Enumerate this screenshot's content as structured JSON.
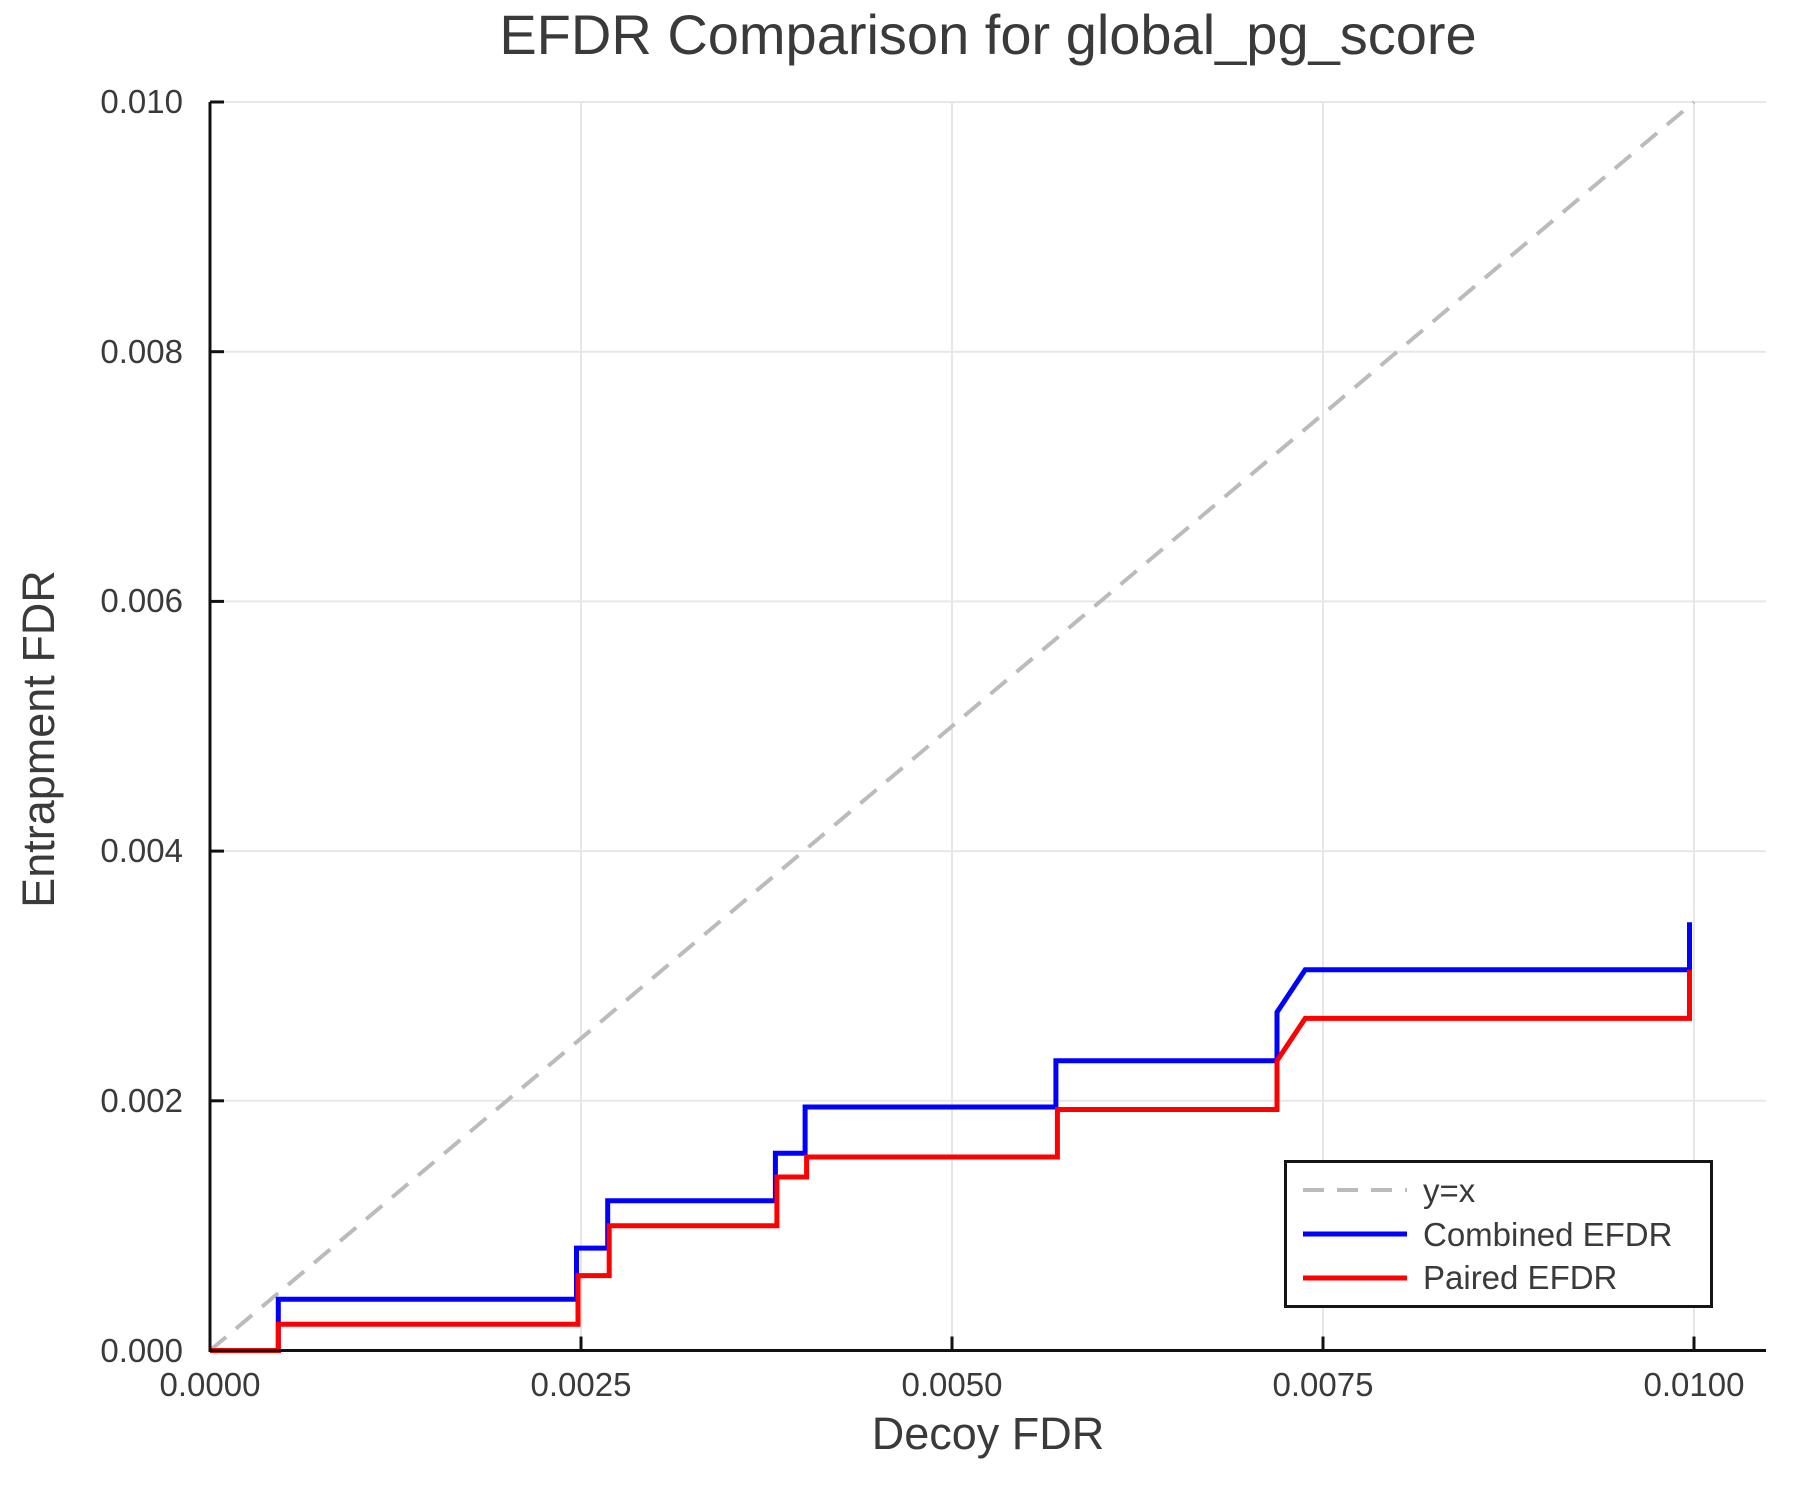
{
  "chart_data": {
    "type": "line",
    "title": "EFDR Comparison for global_pg_score",
    "xlabel": "Decoy FDR",
    "ylabel": "Entrapment FDR",
    "xlim": [
      0,
      0.01049
    ],
    "ylim": [
      0,
      0.01
    ],
    "grid": true,
    "legend": {
      "position": "lower right",
      "entries": [
        "y=x",
        "Combined EFDR",
        "Paired EFDR"
      ]
    },
    "x_ticks": {
      "values": [
        0,
        0.0025,
        0.005,
        0.0075,
        0.01
      ],
      "labels": [
        "0.0000",
        "0.0025",
        "0.0050",
        "0.0075",
        "0.0100"
      ]
    },
    "y_ticks": {
      "values": [
        0,
        0.002,
        0.004,
        0.006,
        0.008,
        0.01
      ],
      "labels": [
        "0.000",
        "0.002",
        "0.004",
        "0.006",
        "0.008",
        "0.010"
      ]
    },
    "series": [
      {
        "name": "y=x",
        "style": "dashed",
        "color": "#bbbbbb",
        "width": 4,
        "dash": "21 13",
        "points": [
          [
            0,
            0
          ],
          [
            0.01,
            0.01
          ]
        ]
      },
      {
        "name": "Combined EFDR",
        "style": "solid",
        "color": "#0000ff",
        "width": 5,
        "dash": "",
        "points": [
          [
            0,
            0
          ],
          [
            0.00046,
            0
          ],
          [
            0.00046,
            0.00041
          ],
          [
            0.00247,
            0.00041
          ],
          [
            0.00247,
            0.00082
          ],
          [
            0.00268,
            0.00082
          ],
          [
            0.00268,
            0.0012
          ],
          [
            0.00381,
            0.0012
          ],
          [
            0.00381,
            0.00158
          ],
          [
            0.00401,
            0.00158
          ],
          [
            0.00401,
            0.00195
          ],
          [
            0.0057,
            0.00195
          ],
          [
            0.0057,
            0.00232
          ],
          [
            0.00719,
            0.00232
          ],
          [
            0.00719,
            0.00271
          ],
          [
            0.00738,
            0.00305
          ],
          [
            0.00997,
            0.00305
          ],
          [
            0.00997,
            0.00343
          ]
        ]
      },
      {
        "name": "Paired EFDR",
        "style": "solid",
        "color": "#ff0000",
        "width": 5,
        "dash": "",
        "points": [
          [
            0,
            0
          ],
          [
            0.00046,
            0
          ],
          [
            0.00046,
            0.00021
          ],
          [
            0.00248,
            0.00021
          ],
          [
            0.00248,
            0.0006
          ],
          [
            0.00269,
            0.0006
          ],
          [
            0.00269,
            0.001
          ],
          [
            0.00382,
            0.001
          ],
          [
            0.00382,
            0.00139
          ],
          [
            0.00402,
            0.00139
          ],
          [
            0.00402,
            0.00155
          ],
          [
            0.00571,
            0.00155
          ],
          [
            0.00571,
            0.00193
          ],
          [
            0.00719,
            0.00193
          ],
          [
            0.00719,
            0.00232
          ],
          [
            0.00738,
            0.00266
          ],
          [
            0.00997,
            0.00266
          ],
          [
            0.00997,
            0.00305
          ]
        ]
      }
    ]
  },
  "colors": {
    "text": "#3a3a3a",
    "spine": "#111111",
    "grid": "#e7e7e7",
    "background": "#ffffff"
  }
}
